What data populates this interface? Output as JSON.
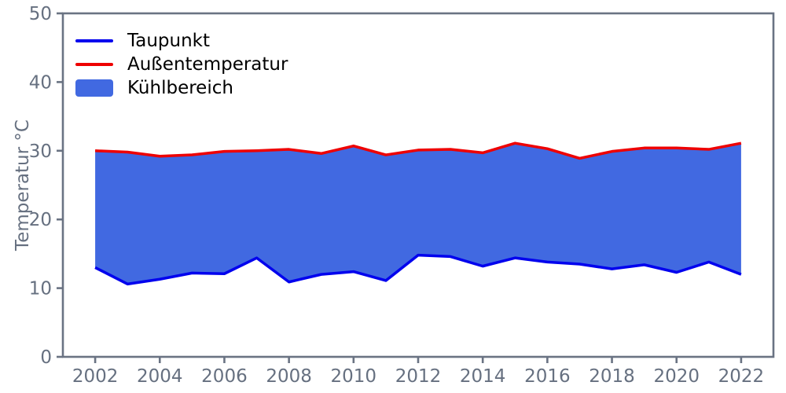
{
  "chart_data": {
    "type": "area",
    "title": "",
    "xlabel": "",
    "ylabel": "Temperatur °C",
    "x": [
      2002,
      2003,
      2004,
      2005,
      2006,
      2007,
      2008,
      2009,
      2010,
      2011,
      2012,
      2013,
      2014,
      2015,
      2016,
      2017,
      2018,
      2019,
      2020,
      2021,
      2022
    ],
    "series": [
      {
        "name": "Taupunkt",
        "kind": "line",
        "color": "#0000ee",
        "values": [
          13.0,
          10.6,
          11.3,
          12.2,
          12.1,
          14.4,
          10.9,
          12.0,
          12.4,
          11.1,
          14.8,
          14.6,
          13.2,
          14.4,
          13.8,
          13.5,
          12.8,
          13.4,
          12.3,
          13.8,
          12.0
        ]
      },
      {
        "name": "Außentemperatur",
        "kind": "line",
        "color": "#ee0000",
        "values": [
          30.0,
          29.8,
          29.2,
          29.4,
          29.9,
          30.0,
          30.2,
          29.6,
          30.7,
          29.4,
          30.1,
          30.2,
          29.7,
          31.1,
          30.3,
          28.9,
          29.9,
          30.4,
          30.4,
          30.2,
          31.1
        ]
      },
      {
        "name": "Kühlbereich",
        "kind": "area-between",
        "color": "#4169e1",
        "between": [
          "Taupunkt",
          "Außentemperatur"
        ]
      }
    ],
    "xlim": [
      2001,
      2023
    ],
    "ylim": [
      0,
      50
    ],
    "xticks": [
      2002,
      2004,
      2006,
      2008,
      2010,
      2012,
      2014,
      2016,
      2018,
      2020,
      2022
    ],
    "yticks": [
      0,
      10,
      20,
      30,
      40,
      50
    ],
    "grid": false,
    "legend": {
      "position": "upper-left",
      "items": [
        {
          "label": "Taupunkt",
          "swatch": "line",
          "color": "#0000ee"
        },
        {
          "label": "Außentemperatur",
          "swatch": "line",
          "color": "#ee0000"
        },
        {
          "label": "Kühlbereich",
          "swatch": "patch",
          "color": "#4169e1"
        }
      ]
    },
    "axis_color": "#6a7383",
    "text_color": "#667080"
  }
}
